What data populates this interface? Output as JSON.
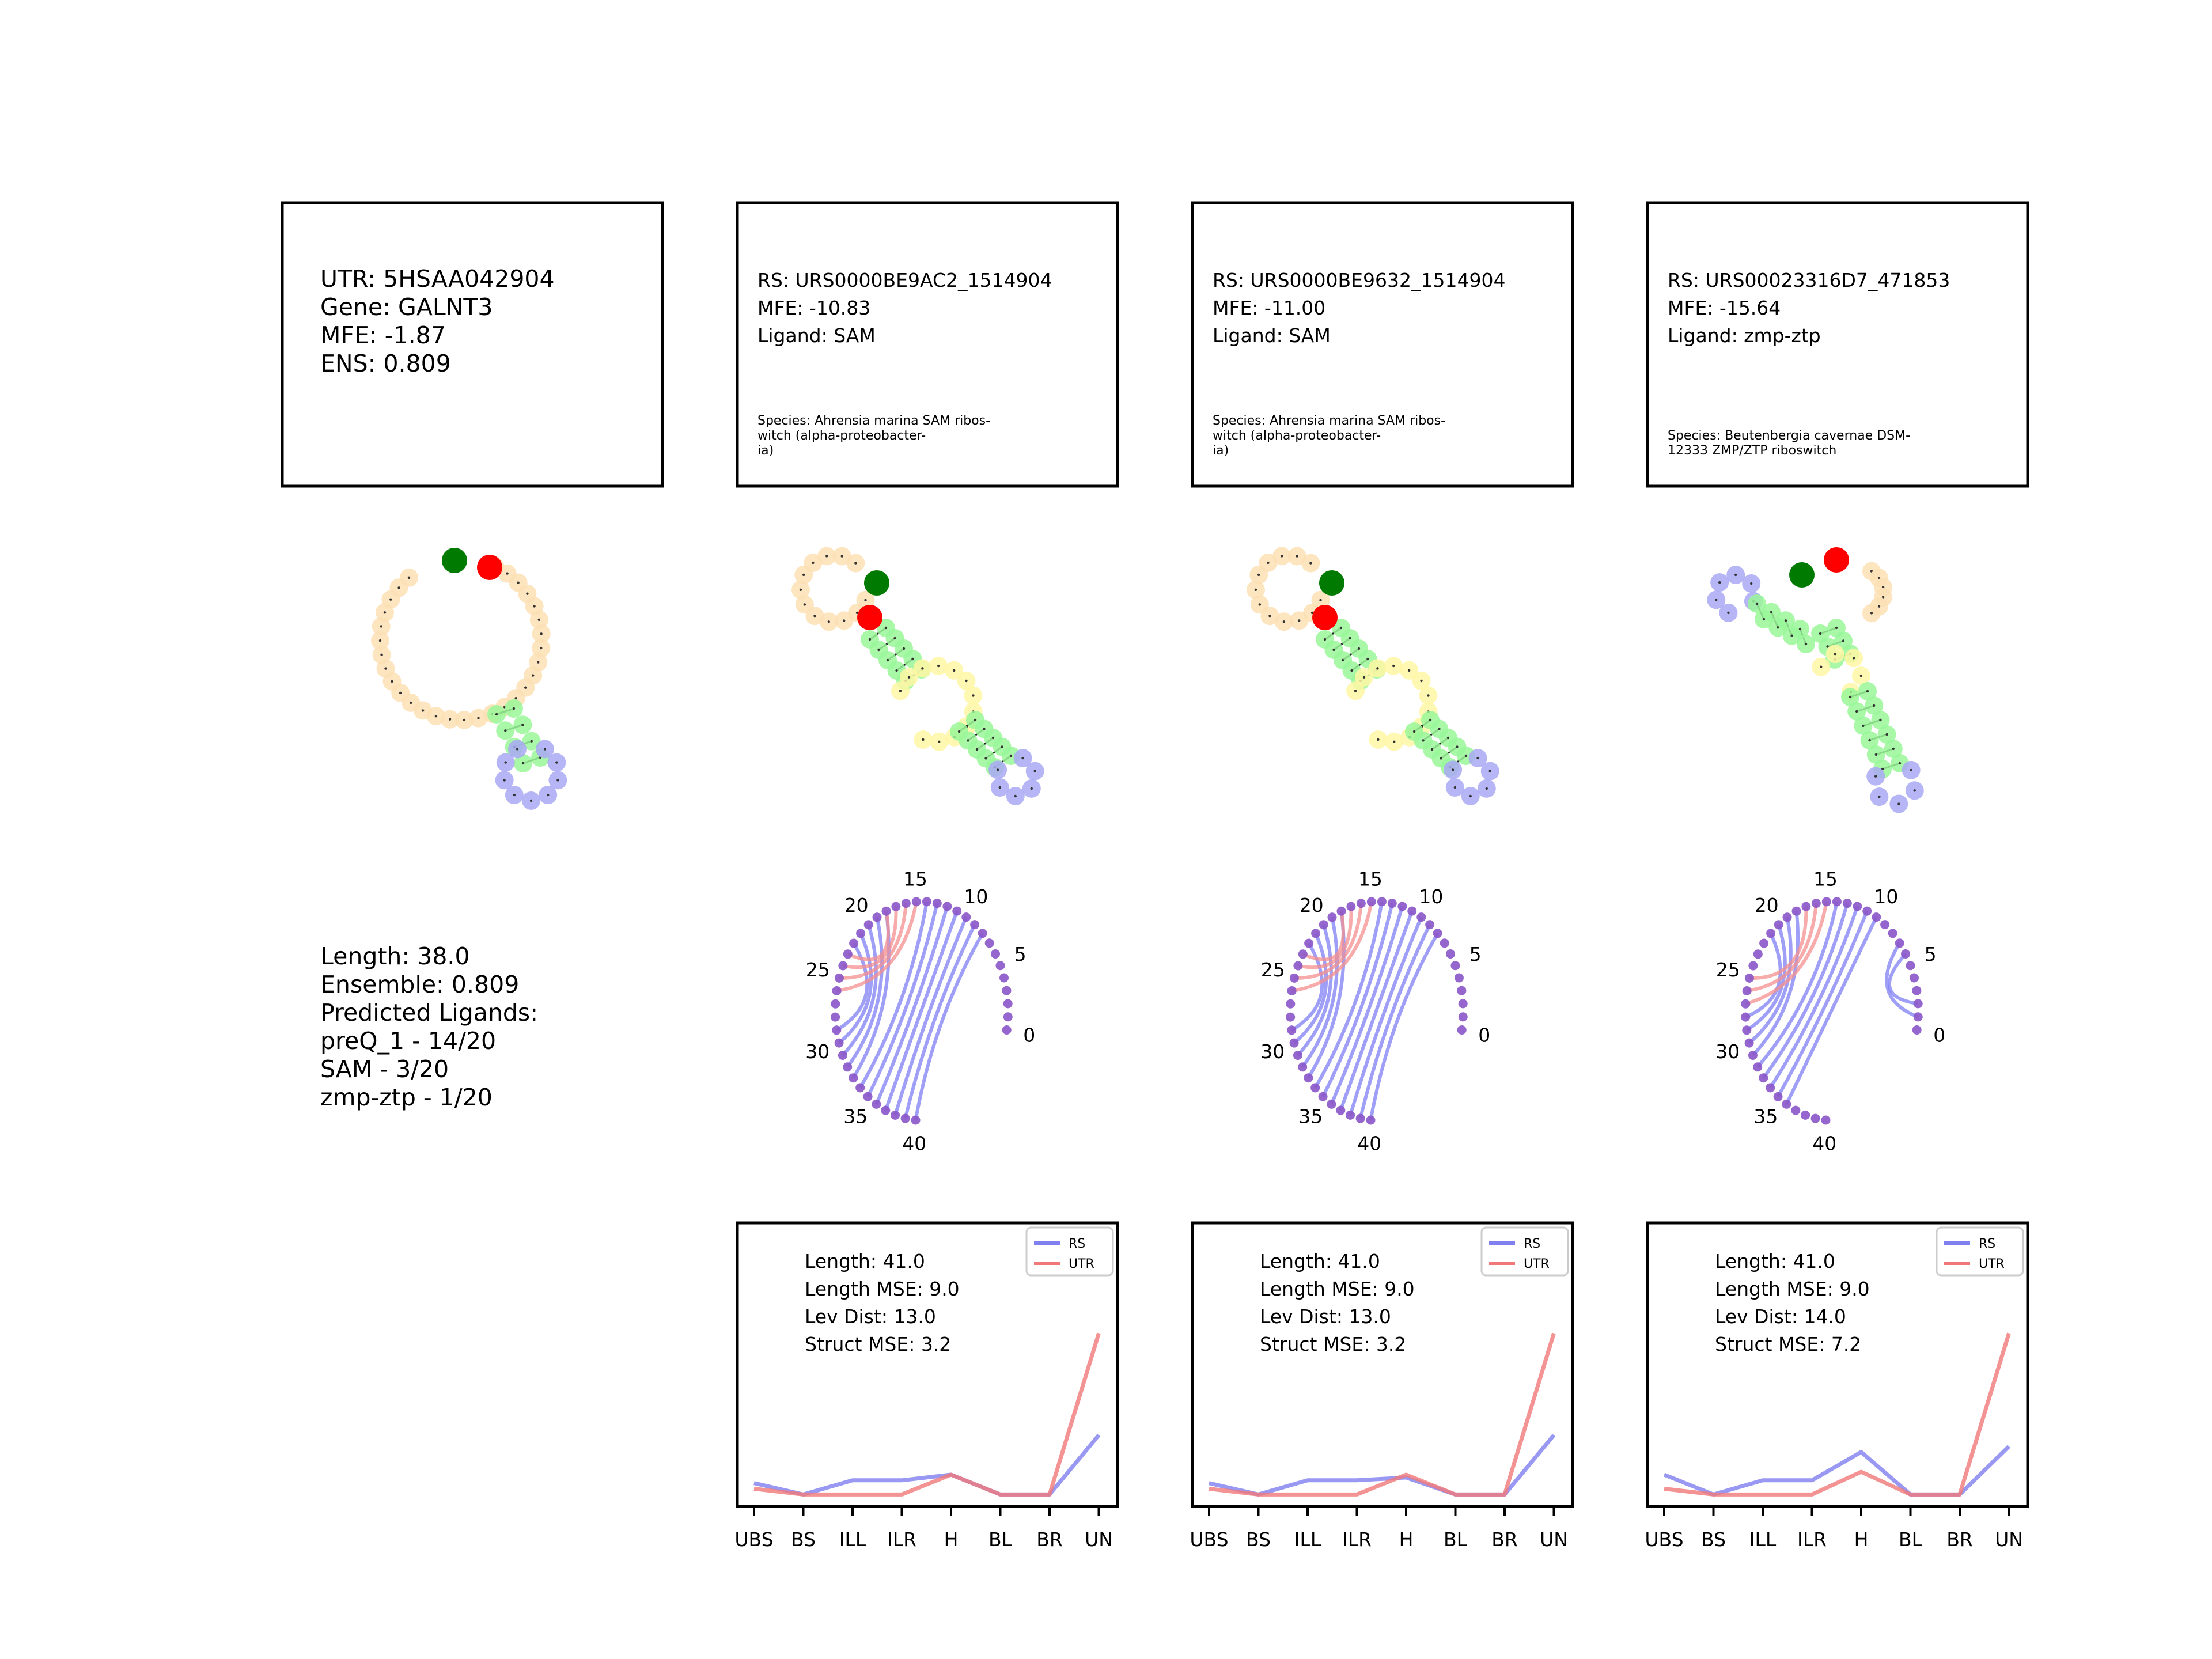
{
  "utr": {
    "lines": [
      "UTR: 5HSAA042904",
      "Gene: GALNT3",
      "MFE: -1.87",
      "ENS: 0.809"
    ],
    "stats": [
      "Length: 38.0",
      "Ensemble: 0.809",
      "Predicted Ligands:",
      "preQ_1 - 14/20",
      "SAM - 3/20",
      "zmp-ztp - 1/20"
    ]
  },
  "riboswitches": [
    {
      "header": [
        "RS: URS0000BE9AC2_1514904",
        "MFE: -10.83",
        "Ligand: SAM"
      ],
      "species": [
        "Species: Ahrensia marina SAM ribos-",
        "witch (alpha-proteobacter-",
        "ia)"
      ],
      "metrics": [
        "Length: 41.0",
        "Length MSE: 9.0",
        "Lev Dist: 13.0",
        "Struct MSE: 3.2"
      ],
      "profile": {
        "RS": [
          0.08,
          0.04,
          0.09,
          0.09,
          0.11,
          0.04,
          0.04,
          0.25
        ],
        "UTR": [
          0.06,
          0.04,
          0.04,
          0.04,
          0.11,
          0.04,
          0.04,
          0.61
        ]
      }
    },
    {
      "header": [
        "RS: URS0000BE9632_1514904",
        "MFE: -11.00",
        "Ligand: SAM"
      ],
      "species": [
        "Species: Ahrensia marina SAM ribos-",
        "witch (alpha-proteobacter-",
        "ia)"
      ],
      "metrics": [
        "Length: 41.0",
        "Length MSE: 9.0",
        "Lev Dist: 13.0",
        "Struct MSE: 3.2"
      ],
      "profile": {
        "RS": [
          0.08,
          0.04,
          0.09,
          0.09,
          0.1,
          0.04,
          0.04,
          0.25
        ],
        "UTR": [
          0.06,
          0.04,
          0.04,
          0.04,
          0.11,
          0.04,
          0.04,
          0.61
        ]
      }
    },
    {
      "header": [
        "RS: URS00023316D7_471853",
        "MFE: -15.64",
        "Ligand: zmp-ztp"
      ],
      "species": [
        "Species: Beutenbergia cavernae DSM-",
        " 12333 ZMP/ZTP riboswitch"
      ],
      "metrics": [
        "Length: 41.0",
        "Length MSE: 9.0",
        "Lev Dist: 14.0",
        "Struct MSE: 7.2"
      ],
      "profile": {
        "RS": [
          0.11,
          0.04,
          0.09,
          0.09,
          0.19,
          0.04,
          0.04,
          0.21
        ],
        "UTR": [
          0.06,
          0.04,
          0.04,
          0.04,
          0.12,
          0.04,
          0.04,
          0.61
        ]
      }
    }
  ],
  "chart_data": {
    "type": "line",
    "categories": [
      "UBS",
      "BS",
      "ILL",
      "ILR",
      "H",
      "BL",
      "BR",
      "UN"
    ],
    "legend": [
      "RS",
      "UTR"
    ],
    "legend_position": "top-right",
    "colors": {
      "RS": "#8080f0",
      "UTR": "#f07878"
    }
  },
  "arc_labels": [
    "0",
    "5",
    "10",
    "15",
    "20",
    "25",
    "30",
    "35",
    "40"
  ],
  "colors": {
    "loop": "#fde0b4",
    "stem": "#99f799",
    "hairpin": "#a9a9f4",
    "interior": "#fff7a4",
    "start": "#007a00",
    "end": "#ff0000",
    "node": "#8a55c8",
    "arc_rs": "#7f7ff4",
    "arc_utr": "#f48f8f"
  }
}
